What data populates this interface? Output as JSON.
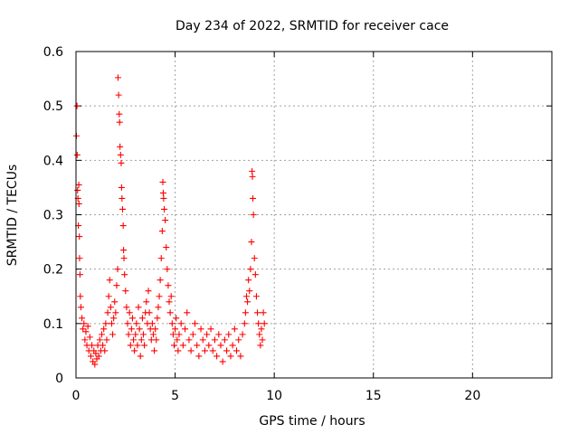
{
  "chart_data": {
    "type": "scatter",
    "title": "Day 234 of 2022, SRMTID for receiver cace",
    "xlabel": "GPS time / hours",
    "ylabel": "SRMTID / TECUs",
    "xlim": [
      0,
      24
    ],
    "ylim": [
      0,
      0.6
    ],
    "xticks": [
      0,
      5,
      10,
      15,
      20
    ],
    "yticks": [
      0,
      0.1,
      0.2,
      0.3,
      0.4,
      0.5,
      0.6
    ],
    "xtick_labels": [
      "0",
      "5",
      "10",
      "15",
      "20"
    ],
    "ytick_labels": [
      "0",
      "0.1",
      "0.2",
      "0.3",
      "0.4",
      "0.5",
      "0.6"
    ],
    "grid": true,
    "marker": "+",
    "color": "#ff0000",
    "series": [
      {
        "name": "cace",
        "points": [
          [
            0.02,
            0.445
          ],
          [
            0.05,
            0.5
          ],
          [
            0.06,
            0.41
          ],
          [
            0.08,
            0.345
          ],
          [
            0.1,
            0.33
          ],
          [
            0.12,
            0.28
          ],
          [
            0.14,
            0.355
          ],
          [
            0.15,
            0.32
          ],
          [
            0.17,
            0.26
          ],
          [
            0.18,
            0.22
          ],
          [
            0.2,
            0.19
          ],
          [
            0.22,
            0.15
          ],
          [
            0.25,
            0.13
          ],
          [
            0.3,
            0.11
          ],
          [
            0.35,
            0.09
          ],
          [
            0.4,
            0.1
          ],
          [
            0.45,
            0.07
          ],
          [
            0.5,
            0.085
          ],
          [
            0.55,
            0.06
          ],
          [
            0.6,
            0.095
          ],
          [
            0.65,
            0.05
          ],
          [
            0.7,
            0.075
          ],
          [
            0.75,
            0.04
          ],
          [
            0.8,
            0.06
          ],
          [
            0.85,
            0.03
          ],
          [
            0.9,
            0.05
          ],
          [
            0.95,
            0.025
          ],
          [
            1.0,
            0.045
          ],
          [
            1.05,
            0.035
          ],
          [
            1.1,
            0.06
          ],
          [
            1.15,
            0.04
          ],
          [
            1.2,
            0.07
          ],
          [
            1.25,
            0.05
          ],
          [
            1.3,
            0.08
          ],
          [
            1.35,
            0.06
          ],
          [
            1.4,
            0.09
          ],
          [
            1.45,
            0.05
          ],
          [
            1.5,
            0.1
          ],
          [
            1.55,
            0.07
          ],
          [
            1.6,
            0.12
          ],
          [
            1.65,
            0.15
          ],
          [
            1.7,
            0.18
          ],
          [
            1.75,
            0.13
          ],
          [
            1.8,
            0.1
          ],
          [
            1.85,
            0.08
          ],
          [
            1.9,
            0.11
          ],
          [
            1.95,
            0.14
          ],
          [
            2.0,
            0.12
          ],
          [
            2.05,
            0.17
          ],
          [
            2.1,
            0.2
          ],
          [
            2.12,
            0.552
          ],
          [
            2.15,
            0.52
          ],
          [
            2.18,
            0.485
          ],
          [
            2.2,
            0.47
          ],
          [
            2.22,
            0.425
          ],
          [
            2.25,
            0.41
          ],
          [
            2.28,
            0.395
          ],
          [
            2.3,
            0.35
          ],
          [
            2.32,
            0.33
          ],
          [
            2.35,
            0.31
          ],
          [
            2.38,
            0.28
          ],
          [
            2.4,
            0.235
          ],
          [
            2.42,
            0.22
          ],
          [
            2.45,
            0.19
          ],
          [
            2.5,
            0.16
          ],
          [
            2.55,
            0.13
          ],
          [
            2.6,
            0.1
          ],
          [
            2.65,
            0.08
          ],
          [
            2.7,
            0.12
          ],
          [
            2.75,
            0.06
          ],
          [
            2.8,
            0.09
          ],
          [
            2.85,
            0.11
          ],
          [
            2.9,
            0.07
          ],
          [
            2.95,
            0.05
          ],
          [
            3.0,
            0.08
          ],
          [
            3.05,
            0.1
          ],
          [
            3.1,
            0.06
          ],
          [
            3.15,
            0.13
          ],
          [
            3.2,
            0.09
          ],
          [
            3.25,
            0.04
          ],
          [
            3.3,
            0.07
          ],
          [
            3.35,
            0.11
          ],
          [
            3.4,
            0.08
          ],
          [
            3.45,
            0.06
          ],
          [
            3.5,
            0.12
          ],
          [
            3.55,
            0.14
          ],
          [
            3.6,
            0.1
          ],
          [
            3.65,
            0.16
          ],
          [
            3.7,
            0.12
          ],
          [
            3.75,
            0.09
          ],
          [
            3.8,
            0.07
          ],
          [
            3.85,
            0.1
          ],
          [
            3.9,
            0.08
          ],
          [
            3.95,
            0.05
          ],
          [
            4.0,
            0.09
          ],
          [
            4.05,
            0.07
          ],
          [
            4.1,
            0.11
          ],
          [
            4.15,
            0.13
          ],
          [
            4.2,
            0.15
          ],
          [
            4.25,
            0.18
          ],
          [
            4.3,
            0.22
          ],
          [
            4.35,
            0.27
          ],
          [
            4.38,
            0.36
          ],
          [
            4.4,
            0.34
          ],
          [
            4.42,
            0.33
          ],
          [
            4.45,
            0.31
          ],
          [
            4.5,
            0.29
          ],
          [
            4.55,
            0.24
          ],
          [
            4.6,
            0.2
          ],
          [
            4.65,
            0.17
          ],
          [
            4.7,
            0.14
          ],
          [
            4.75,
            0.12
          ],
          [
            4.8,
            0.15
          ],
          [
            4.85,
            0.1
          ],
          [
            4.9,
            0.08
          ],
          [
            4.95,
            0.06
          ],
          [
            5.0,
            0.09
          ],
          [
            5.05,
            0.11
          ],
          [
            5.1,
            0.07
          ],
          [
            5.15,
            0.05
          ],
          [
            5.2,
            0.08
          ],
          [
            5.3,
            0.1
          ],
          [
            5.4,
            0.06
          ],
          [
            5.5,
            0.09
          ],
          [
            5.6,
            0.12
          ],
          [
            5.7,
            0.07
          ],
          [
            5.8,
            0.05
          ],
          [
            5.9,
            0.08
          ],
          [
            6.0,
            0.1
          ],
          [
            6.1,
            0.06
          ],
          [
            6.2,
            0.04
          ],
          [
            6.3,
            0.09
          ],
          [
            6.4,
            0.07
          ],
          [
            6.5,
            0.05
          ],
          [
            6.6,
            0.08
          ],
          [
            6.7,
            0.06
          ],
          [
            6.8,
            0.09
          ],
          [
            6.9,
            0.05
          ],
          [
            7.0,
            0.07
          ],
          [
            7.1,
            0.04
          ],
          [
            7.2,
            0.08
          ],
          [
            7.3,
            0.06
          ],
          [
            7.4,
            0.03
          ],
          [
            7.5,
            0.07
          ],
          [
            7.6,
            0.05
          ],
          [
            7.7,
            0.08
          ],
          [
            7.8,
            0.04
          ],
          [
            7.9,
            0.06
          ],
          [
            8.0,
            0.09
          ],
          [
            8.1,
            0.05
          ],
          [
            8.2,
            0.07
          ],
          [
            8.3,
            0.04
          ],
          [
            8.4,
            0.08
          ],
          [
            8.5,
            0.1
          ],
          [
            8.55,
            0.12
          ],
          [
            8.6,
            0.15
          ],
          [
            8.65,
            0.14
          ],
          [
            8.7,
            0.18
          ],
          [
            8.75,
            0.16
          ],
          [
            8.8,
            0.2
          ],
          [
            8.85,
            0.25
          ],
          [
            8.88,
            0.38
          ],
          [
            8.9,
            0.37
          ],
          [
            8.92,
            0.33
          ],
          [
            8.95,
            0.3
          ],
          [
            9.0,
            0.22
          ],
          [
            9.05,
            0.19
          ],
          [
            9.1,
            0.15
          ],
          [
            9.15,
            0.12
          ],
          [
            9.2,
            0.1
          ],
          [
            9.25,
            0.08
          ],
          [
            9.3,
            0.06
          ],
          [
            9.35,
            0.09
          ],
          [
            9.4,
            0.07
          ],
          [
            9.45,
            0.12
          ],
          [
            9.5,
            0.1
          ]
        ]
      }
    ]
  }
}
